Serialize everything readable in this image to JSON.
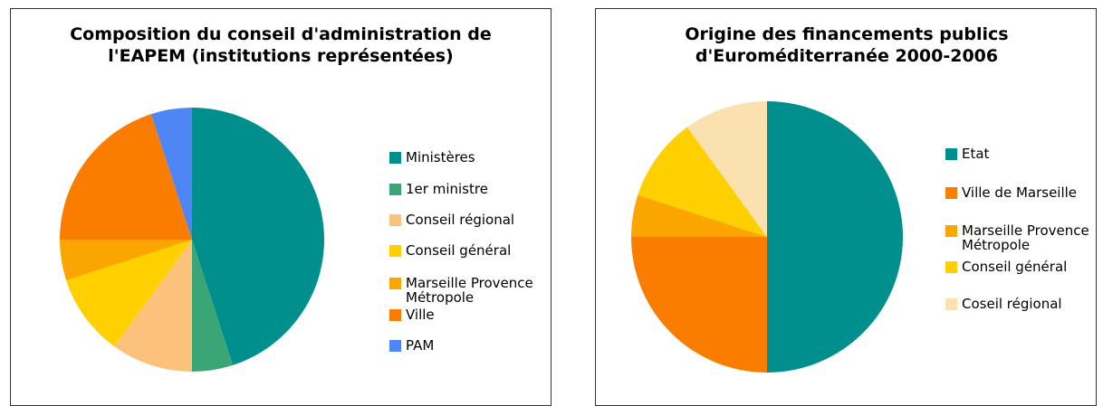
{
  "chart_data": [
    {
      "type": "pie",
      "title": "Composition du conseil d'administration de l'EAPEM (institutions représentées)",
      "categories": [
        "Ministères",
        "1er ministre",
        "Conseil régional",
        "Conseil général",
        "Marseille Provence Métropole",
        "Ville",
        "PAM"
      ],
      "values": [
        45,
        5,
        10,
        10,
        5,
        20,
        5
      ],
      "colors": [
        "#008f8c",
        "#3aa675",
        "#fcc27b",
        "#ffd000",
        "#fba600",
        "#fb7d00",
        "#4f86f5"
      ]
    },
    {
      "type": "pie",
      "title": "Origine des financements publics d'Euroméditerranée 2000-2006",
      "categories": [
        "Etat",
        "Ville de Marseille",
        "Marseille Provence Métropole",
        "Conseil général",
        "Coseil régional"
      ],
      "values": [
        50,
        25,
        5,
        10,
        10
      ],
      "colors": [
        "#008f8c",
        "#fb7d00",
        "#fba600",
        "#ffd000",
        "#fbe0b0"
      ]
    }
  ]
}
